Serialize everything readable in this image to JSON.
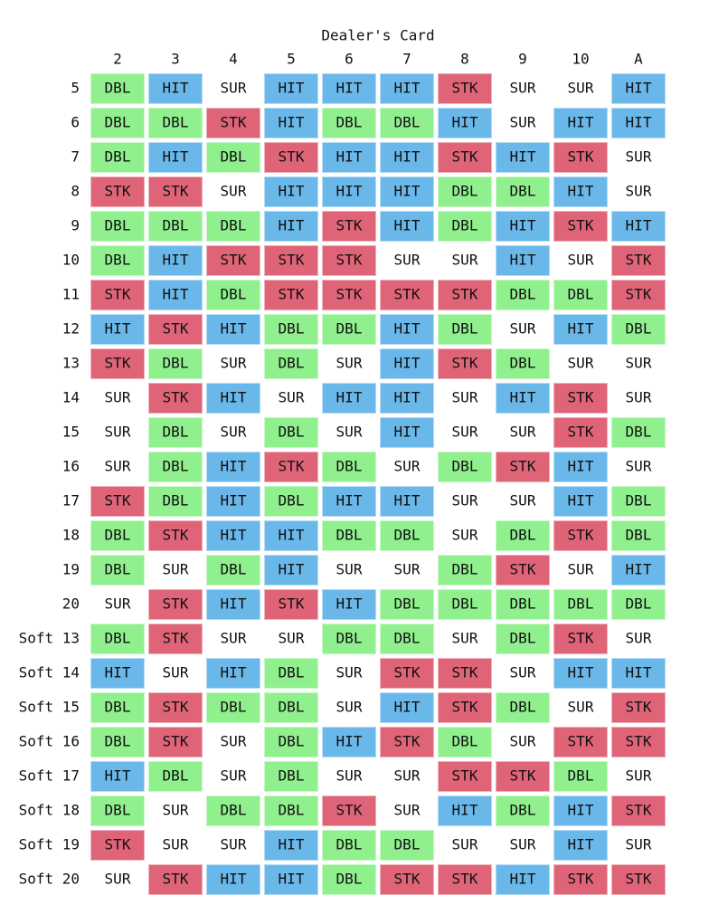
{
  "title": "Dealer's Card",
  "columns": [
    "2",
    "3",
    "4",
    "5",
    "6",
    "7",
    "8",
    "9",
    "10",
    "A"
  ],
  "cell_colors": {
    "DBL": "#90f08e",
    "HIT": "#6ab8ea",
    "STK": "#df6478",
    "SUR": "#ffffff"
  },
  "rows": [
    {
      "label": "5",
      "cells": [
        "DBL",
        "HIT",
        "SUR",
        "HIT",
        "HIT",
        "HIT",
        "STK",
        "SUR",
        "SUR",
        "HIT"
      ]
    },
    {
      "label": "6",
      "cells": [
        "DBL",
        "DBL",
        "STK",
        "HIT",
        "DBL",
        "DBL",
        "HIT",
        "SUR",
        "HIT",
        "HIT"
      ]
    },
    {
      "label": "7",
      "cells": [
        "DBL",
        "HIT",
        "DBL",
        "STK",
        "HIT",
        "HIT",
        "STK",
        "HIT",
        "STK",
        "SUR"
      ]
    },
    {
      "label": "8",
      "cells": [
        "STK",
        "STK",
        "SUR",
        "HIT",
        "HIT",
        "HIT",
        "DBL",
        "DBL",
        "HIT",
        "SUR"
      ]
    },
    {
      "label": "9",
      "cells": [
        "DBL",
        "DBL",
        "DBL",
        "HIT",
        "STK",
        "HIT",
        "DBL",
        "HIT",
        "STK",
        "HIT"
      ]
    },
    {
      "label": "10",
      "cells": [
        "DBL",
        "HIT",
        "STK",
        "STK",
        "STK",
        "SUR",
        "SUR",
        "HIT",
        "SUR",
        "STK"
      ]
    },
    {
      "label": "11",
      "cells": [
        "STK",
        "HIT",
        "DBL",
        "STK",
        "STK",
        "STK",
        "STK",
        "DBL",
        "DBL",
        "STK"
      ]
    },
    {
      "label": "12",
      "cells": [
        "HIT",
        "STK",
        "HIT",
        "DBL",
        "DBL",
        "HIT",
        "DBL",
        "SUR",
        "HIT",
        "DBL"
      ]
    },
    {
      "label": "13",
      "cells": [
        "STK",
        "DBL",
        "SUR",
        "DBL",
        "SUR",
        "HIT",
        "STK",
        "DBL",
        "SUR",
        "SUR"
      ]
    },
    {
      "label": "14",
      "cells": [
        "SUR",
        "STK",
        "HIT",
        "SUR",
        "HIT",
        "HIT",
        "SUR",
        "HIT",
        "STK",
        "SUR"
      ]
    },
    {
      "label": "15",
      "cells": [
        "SUR",
        "DBL",
        "SUR",
        "DBL",
        "SUR",
        "HIT",
        "SUR",
        "SUR",
        "STK",
        "DBL"
      ]
    },
    {
      "label": "16",
      "cells": [
        "SUR",
        "DBL",
        "HIT",
        "STK",
        "DBL",
        "SUR",
        "DBL",
        "STK",
        "HIT",
        "SUR"
      ]
    },
    {
      "label": "17",
      "cells": [
        "STK",
        "DBL",
        "HIT",
        "DBL",
        "HIT",
        "HIT",
        "SUR",
        "SUR",
        "HIT",
        "DBL"
      ]
    },
    {
      "label": "18",
      "cells": [
        "DBL",
        "STK",
        "HIT",
        "HIT",
        "DBL",
        "DBL",
        "SUR",
        "DBL",
        "STK",
        "DBL"
      ]
    },
    {
      "label": "19",
      "cells": [
        "DBL",
        "SUR",
        "DBL",
        "HIT",
        "SUR",
        "SUR",
        "DBL",
        "STK",
        "SUR",
        "HIT"
      ]
    },
    {
      "label": "20",
      "cells": [
        "SUR",
        "STK",
        "HIT",
        "STK",
        "HIT",
        "DBL",
        "DBL",
        "DBL",
        "DBL",
        "DBL"
      ]
    },
    {
      "label": "Soft 13",
      "cells": [
        "DBL",
        "STK",
        "SUR",
        "SUR",
        "DBL",
        "DBL",
        "SUR",
        "DBL",
        "STK",
        "SUR"
      ]
    },
    {
      "label": "Soft 14",
      "cells": [
        "HIT",
        "SUR",
        "HIT",
        "DBL",
        "SUR",
        "STK",
        "STK",
        "SUR",
        "HIT",
        "HIT"
      ]
    },
    {
      "label": "Soft 15",
      "cells": [
        "DBL",
        "STK",
        "DBL",
        "DBL",
        "SUR",
        "HIT",
        "STK",
        "DBL",
        "SUR",
        "STK"
      ]
    },
    {
      "label": "Soft 16",
      "cells": [
        "DBL",
        "STK",
        "SUR",
        "DBL",
        "HIT",
        "STK",
        "DBL",
        "SUR",
        "STK",
        "STK"
      ]
    },
    {
      "label": "Soft 17",
      "cells": [
        "HIT",
        "DBL",
        "SUR",
        "DBL",
        "SUR",
        "SUR",
        "STK",
        "STK",
        "DBL",
        "SUR"
      ]
    },
    {
      "label": "Soft 18",
      "cells": [
        "DBL",
        "SUR",
        "DBL",
        "DBL",
        "STK",
        "SUR",
        "HIT",
        "DBL",
        "HIT",
        "STK"
      ]
    },
    {
      "label": "Soft 19",
      "cells": [
        "STK",
        "SUR",
        "SUR",
        "HIT",
        "DBL",
        "DBL",
        "SUR",
        "SUR",
        "HIT",
        "SUR"
      ]
    },
    {
      "label": "Soft 20",
      "cells": [
        "SUR",
        "STK",
        "HIT",
        "HIT",
        "DBL",
        "STK",
        "STK",
        "HIT",
        "STK",
        "STK"
      ]
    }
  ]
}
